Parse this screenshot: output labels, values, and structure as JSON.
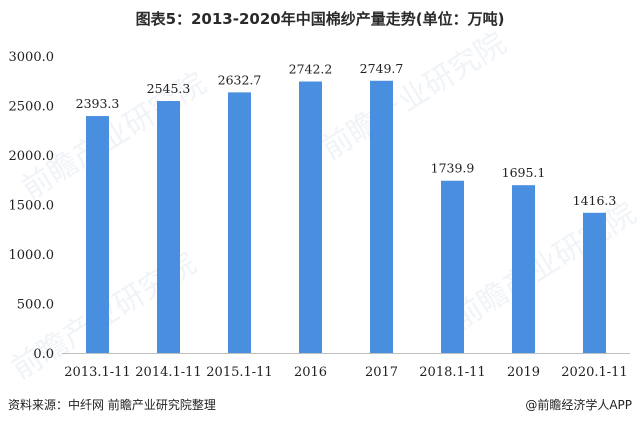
{
  "chart_data": {
    "type": "bar",
    "title": "图表5：2013-2020年中国棉纱产量走势(单位：万吨)",
    "categories": [
      "2013.1-11",
      "2014.1-11",
      "2015.1-11",
      "2016",
      "2017",
      "2018.1-11",
      "2019",
      "2020.1-11"
    ],
    "values": [
      2393.3,
      2545.3,
      2632.7,
      2742.2,
      2749.7,
      1739.9,
      1695.1,
      1416.3
    ],
    "value_labels": [
      "2393.3",
      "2545.3",
      "2632.7",
      "2742.2",
      "2749.7",
      "1739.9",
      "1695.1",
      "1416.3"
    ],
    "xlabel": "",
    "ylabel": "",
    "ylim": [
      0,
      3000
    ],
    "y_ticks": [
      "0.0",
      "500.0",
      "1000.0",
      "1500.0",
      "2000.0",
      "2500.0",
      "3000.0"
    ],
    "grid": false,
    "bar_color": "#4a8ee0"
  },
  "footer": {
    "source": "资料来源：中纤网 前瞻产业研究院整理",
    "brand": "@前瞻经济学人APP"
  },
  "watermark": {
    "text": "前瞻产业研究院"
  }
}
